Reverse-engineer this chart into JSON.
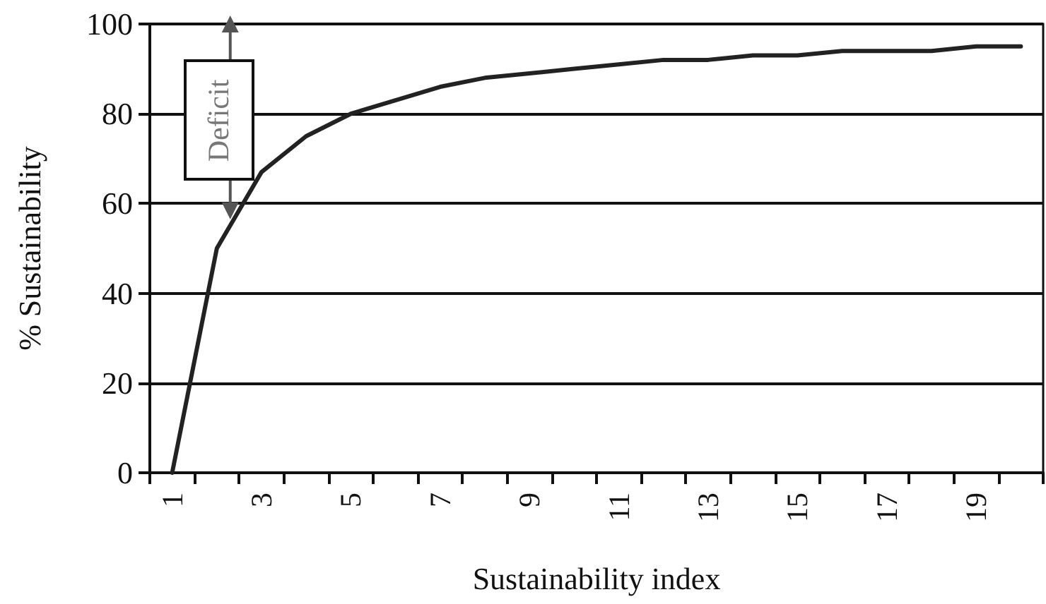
{
  "chart_data": {
    "type": "line",
    "xlabel": "Sustainability index",
    "ylabel": "% Sustainability",
    "categories": [
      "1",
      null,
      "3",
      null,
      "5",
      null,
      "7",
      null,
      "9",
      null,
      "11",
      null,
      "13",
      null,
      "15",
      null,
      "17",
      null,
      "19",
      null
    ],
    "series": [
      {
        "color": "#222222",
        "values": [
          0,
          50,
          67,
          75,
          80,
          83,
          86,
          88,
          89,
          90,
          91,
          92,
          92,
          93,
          93,
          94,
          94,
          94,
          95,
          95
        ]
      }
    ],
    "ylim": [
      0,
      100
    ],
    "yticks": [
      0,
      20,
      40,
      60,
      80,
      100
    ],
    "grid": "y",
    "marker": "none",
    "line_style": "solid",
    "annotations": [
      "Deficit"
    ]
  }
}
